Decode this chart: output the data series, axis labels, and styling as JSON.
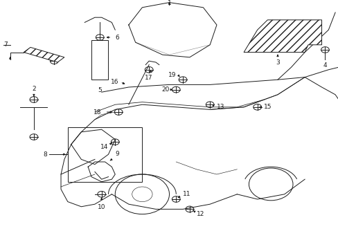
{
  "bg_color": "#ffffff",
  "line_color": "#1a1a1a",
  "fig_width": 4.89,
  "fig_height": 3.6,
  "dpi": 100,
  "lw": 0.7,
  "fontsize": 6.5
}
